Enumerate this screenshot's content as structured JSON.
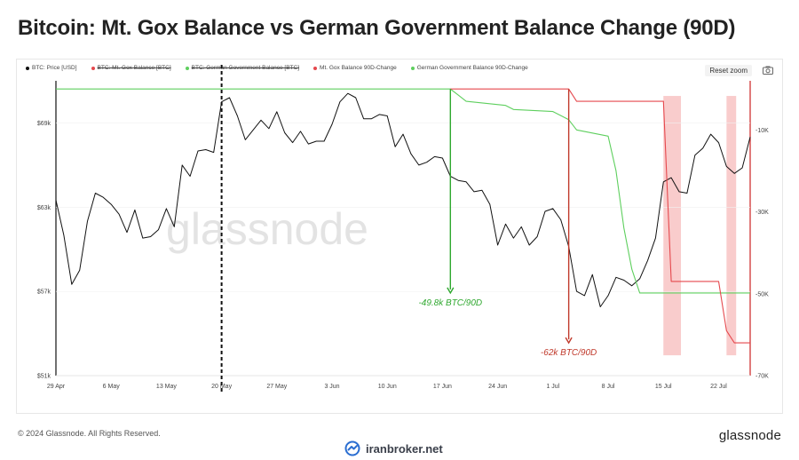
{
  "title": "Bitcoin: Mt. Gox Balance vs German Government Balance Change (90D)",
  "legend": [
    {
      "label": "BTC: Price [USD]",
      "color": "#111111",
      "struck": false
    },
    {
      "label": "BTC: Mt. Gox Balance [BTC]",
      "color": "#e5484d",
      "struck": true
    },
    {
      "label": "BTC: German Government Balance [BTC]",
      "color": "#5ecf5e",
      "struck": true
    },
    {
      "label": "Mt. Gox Balance 90D-Change",
      "color": "#e5484d",
      "struck": false
    },
    {
      "label": "German Government Balance 90D-Change",
      "color": "#5ecf5e",
      "struck": false
    }
  ],
  "controls": {
    "reset_zoom": "Reset zoom",
    "camera_icon": "camera-icon"
  },
  "watermark": "glassnode",
  "footer": {
    "copyright": "© 2024 Glassnode. All Rights Reserved.",
    "logo": "glassnode"
  },
  "brand": {
    "name": "iranbroker.net",
    "icon": "iranbroker-logo-icon"
  },
  "colors": {
    "price": "#111111",
    "mtgox": "#e5484d",
    "german": "#5ecf5e",
    "annotation_green": "#2fa82f",
    "annotation_red": "#c0392b",
    "highlight": "#f7b6b6",
    "axis_right": "#cc2222"
  },
  "chart_data": {
    "type": "line",
    "x_ticks": [
      "29 Apr",
      "6 May",
      "13 May",
      "20 May",
      "27 May",
      "3 Jun",
      "10 Jun",
      "17 Jun",
      "24 Jun",
      "1 Jul",
      "8 Jul",
      "15 Jul",
      "22 Jul"
    ],
    "x_range": [
      "2024-04-29",
      "2024-07-26"
    ],
    "y_left": {
      "ticks": [
        "$51k",
        "$57k",
        "$63k",
        "$69k"
      ],
      "values": [
        51000,
        57000,
        63000,
        69000
      ],
      "range": [
        51000,
        72000
      ]
    },
    "y_right": {
      "ticks": [
        "-70K",
        "-50K",
        "-30K",
        "-10K"
      ],
      "values": [
        -70000,
        -50000,
        -30000,
        -10000
      ],
      "range": [
        -70000,
        2000
      ]
    },
    "series": [
      {
        "name": "BTC: Price [USD]",
        "axis": "left",
        "points": [
          [
            "2024-04-29",
            63500
          ],
          [
            "2024-04-30",
            61000
          ],
          [
            "2024-05-01",
            57500
          ],
          [
            "2024-05-02",
            58500
          ],
          [
            "2024-05-03",
            62000
          ],
          [
            "2024-05-04",
            64000
          ],
          [
            "2024-05-05",
            63700
          ],
          [
            "2024-05-06",
            63200
          ],
          [
            "2024-05-07",
            62500
          ],
          [
            "2024-05-08",
            61200
          ],
          [
            "2024-05-09",
            62800
          ],
          [
            "2024-05-10",
            60800
          ],
          [
            "2024-05-11",
            60900
          ],
          [
            "2024-05-12",
            61400
          ],
          [
            "2024-05-13",
            62900
          ],
          [
            "2024-05-14",
            61600
          ],
          [
            "2024-05-15",
            66000
          ],
          [
            "2024-05-16",
            65200
          ],
          [
            "2024-05-17",
            67000
          ],
          [
            "2024-05-18",
            67100
          ],
          [
            "2024-05-19",
            66900
          ],
          [
            "2024-05-20",
            70500
          ],
          [
            "2024-05-21",
            70800
          ],
          [
            "2024-05-22",
            69500
          ],
          [
            "2024-05-23",
            67800
          ],
          [
            "2024-05-24",
            68500
          ],
          [
            "2024-05-25",
            69200
          ],
          [
            "2024-05-26",
            68600
          ],
          [
            "2024-05-27",
            69800
          ],
          [
            "2024-05-28",
            68300
          ],
          [
            "2024-05-29",
            67600
          ],
          [
            "2024-05-30",
            68400
          ],
          [
            "2024-05-31",
            67500
          ],
          [
            "2024-06-01",
            67700
          ],
          [
            "2024-06-02",
            67700
          ],
          [
            "2024-06-03",
            68900
          ],
          [
            "2024-06-04",
            70500
          ],
          [
            "2024-06-05",
            71100
          ],
          [
            "2024-06-06",
            70800
          ],
          [
            "2024-06-07",
            69300
          ],
          [
            "2024-06-08",
            69300
          ],
          [
            "2024-06-09",
            69600
          ],
          [
            "2024-06-10",
            69500
          ],
          [
            "2024-06-11",
            67300
          ],
          [
            "2024-06-12",
            68200
          ],
          [
            "2024-06-13",
            66800
          ],
          [
            "2024-06-14",
            66000
          ],
          [
            "2024-06-15",
            66200
          ],
          [
            "2024-06-16",
            66600
          ],
          [
            "2024-06-17",
            66500
          ],
          [
            "2024-06-18",
            65200
          ],
          [
            "2024-06-19",
            64900
          ],
          [
            "2024-06-20",
            64800
          ],
          [
            "2024-06-21",
            64100
          ],
          [
            "2024-06-22",
            64200
          ],
          [
            "2024-06-23",
            63200
          ],
          [
            "2024-06-24",
            60300
          ],
          [
            "2024-06-25",
            61800
          ],
          [
            "2024-06-26",
            60800
          ],
          [
            "2024-06-27",
            61600
          ],
          [
            "2024-06-28",
            60300
          ],
          [
            "2024-06-29",
            60900
          ],
          [
            "2024-06-30",
            62700
          ],
          [
            "2024-07-01",
            62900
          ],
          [
            "2024-07-02",
            62100
          ],
          [
            "2024-07-03",
            60200
          ],
          [
            "2024-07-04",
            57000
          ],
          [
            "2024-07-05",
            56700
          ],
          [
            "2024-07-06",
            58200
          ],
          [
            "2024-07-07",
            55900
          ],
          [
            "2024-07-08",
            56700
          ],
          [
            "2024-07-09",
            58000
          ],
          [
            "2024-07-10",
            57800
          ],
          [
            "2024-07-11",
            57400
          ],
          [
            "2024-07-12",
            57900
          ],
          [
            "2024-07-13",
            59200
          ],
          [
            "2024-07-14",
            60800
          ],
          [
            "2024-07-15",
            64800
          ],
          [
            "2024-07-16",
            65100
          ],
          [
            "2024-07-17",
            64100
          ],
          [
            "2024-07-18",
            64000
          ],
          [
            "2024-07-19",
            66700
          ],
          [
            "2024-07-20",
            67200
          ],
          [
            "2024-07-21",
            68200
          ],
          [
            "2024-07-22",
            67600
          ],
          [
            "2024-07-23",
            65900
          ],
          [
            "2024-07-24",
            65400
          ],
          [
            "2024-07-25",
            65800
          ],
          [
            "2024-07-26",
            68000
          ]
        ]
      },
      {
        "name": "German Government Balance 90D-Change",
        "axis": "right",
        "points": [
          [
            "2024-04-29",
            0
          ],
          [
            "2024-06-18",
            0
          ],
          [
            "2024-06-19",
            -1500
          ],
          [
            "2024-06-20",
            -3000
          ],
          [
            "2024-06-25",
            -4000
          ],
          [
            "2024-06-26",
            -5000
          ],
          [
            "2024-07-01",
            -5500
          ],
          [
            "2024-07-03",
            -7500
          ],
          [
            "2024-07-04",
            -10000
          ],
          [
            "2024-07-08",
            -11500
          ],
          [
            "2024-07-09",
            -20000
          ],
          [
            "2024-07-10",
            -34000
          ],
          [
            "2024-07-11",
            -44000
          ],
          [
            "2024-07-12",
            -49800
          ],
          [
            "2024-07-26",
            -49800
          ]
        ]
      },
      {
        "name": "Mt. Gox Balance 90D-Change",
        "axis": "right",
        "points": [
          [
            "2024-06-18",
            0
          ],
          [
            "2024-07-03",
            0
          ],
          [
            "2024-07-04",
            -3000
          ],
          [
            "2024-07-15",
            -3000
          ],
          [
            "2024-07-16",
            -47000
          ],
          [
            "2024-07-22",
            -47000
          ],
          [
            "2024-07-23",
            -59000
          ],
          [
            "2024-07-24",
            -62000
          ],
          [
            "2024-07-26",
            -62000
          ]
        ]
      }
    ],
    "markers": {
      "dashed_vertical": "2024-05-20",
      "highlights": [
        {
          "from": "2024-07-15",
          "to": "2024-07-17"
        },
        {
          "from": "2024-07-23",
          "to": "2024-07-24"
        }
      ]
    },
    "annotations": [
      {
        "text": "-49.8k BTC/90D",
        "color": "green",
        "date": "2024-06-18",
        "from": 0,
        "to": -49800
      },
      {
        "text": "-62k BTC/90D",
        "color": "red",
        "date": "2024-07-03",
        "from": 0,
        "to": -62000
      }
    ]
  }
}
